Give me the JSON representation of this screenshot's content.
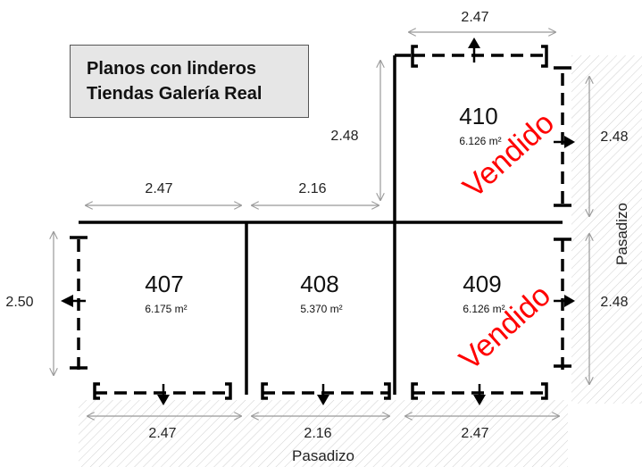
{
  "title": {
    "line1": "Planos con linderos",
    "line2": "Tiendas Galería Real"
  },
  "units": [
    {
      "id": "407",
      "area": "6.175 m²",
      "status": ""
    },
    {
      "id": "408",
      "area": "5.370 m²",
      "status": ""
    },
    {
      "id": "409",
      "area": "6.126 m²",
      "status": "Vendido"
    },
    {
      "id": "410",
      "area": "6.126 m²",
      "status": "Vendido"
    }
  ],
  "dimensions": {
    "top_410": "2.47",
    "left_410": "2.48",
    "right_410": "2.48",
    "top_407": "2.47",
    "top_408": "2.16",
    "left_407": "2.50",
    "right_409": "2.48",
    "bottom_407": "2.47",
    "bottom_408": "2.16",
    "bottom_409": "2.47"
  },
  "labels": {
    "pasadizo_bottom": "Pasadizo",
    "pasadizo_right": "Pasadizo"
  },
  "colors": {
    "sold": "#ff0000",
    "wall": "#000000",
    "dim": "#999999",
    "hatch": "#cccccc"
  }
}
